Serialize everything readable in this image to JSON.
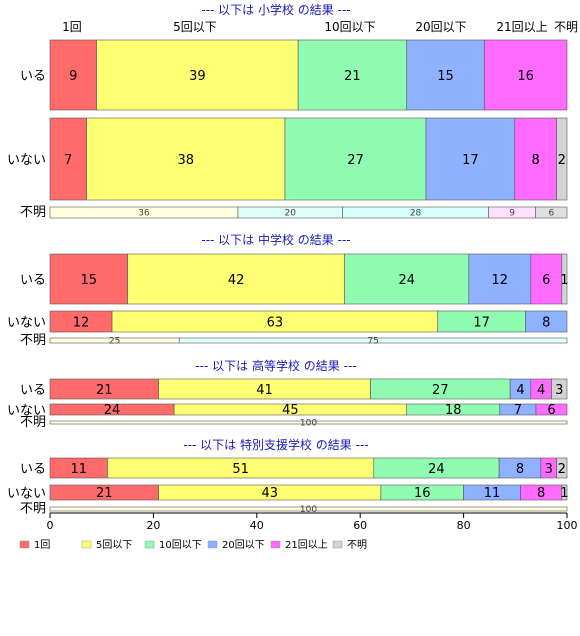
{
  "colors": {
    "cat1": "#ff6b6b",
    "cat2": "#ffff73",
    "cat3": "#8ffcb2",
    "cat4": "#8eb2ff",
    "cat5": "#ff6bff",
    "cat6": "#d3d3d3",
    "bar_border": "#555555",
    "title": "#1a1ab8"
  },
  "chart_data": {
    "type": "bar",
    "orientation": "horizontal-stacked-100",
    "categories": [
      "1回",
      "5回以下",
      "10回以下",
      "20回以下",
      "21回以上",
      "不明"
    ],
    "top_category_labels": [
      "1回",
      "5回以下",
      "10回以下",
      "20回以下",
      "21回以上",
      "不明"
    ],
    "xlim": [
      0,
      100
    ],
    "xticks": [
      0,
      20,
      40,
      60,
      80,
      100
    ],
    "legend": {
      "position": "bottom-left",
      "labels": [
        "1回",
        "5回以下",
        "10回以下",
        "20回以下",
        "21回以上",
        "不明"
      ]
    },
    "groups": [
      {
        "title": "--- 以下は 小学校 の結果 ---",
        "rows": [
          {
            "label": "いる",
            "values": [
              9,
              39,
              21,
              15,
              16,
              0
            ]
          },
          {
            "label": "いない",
            "values": [
              7,
              38,
              27,
              17,
              8,
              2
            ]
          },
          {
            "label": "不明",
            "values": [
              0,
              36,
              20,
              28,
              9,
              6
            ]
          }
        ]
      },
      {
        "title": "--- 以下は 中学校 の結果 ---",
        "rows": [
          {
            "label": "いる",
            "values": [
              15,
              42,
              24,
              12,
              6,
              1
            ]
          },
          {
            "label": "いない",
            "values": [
              12,
              63,
              17,
              8,
              0,
              0
            ]
          },
          {
            "label": "不明",
            "values": [
              0,
              25,
              75,
              0,
              0,
              0
            ]
          }
        ]
      },
      {
        "title": "--- 以下は 高等学校 の結果 ---",
        "rows": [
          {
            "label": "いる",
            "values": [
              21,
              41,
              27,
              4,
              4,
              3
            ]
          },
          {
            "label": "いない",
            "values": [
              24,
              45,
              18,
              7,
              6,
              0
            ]
          },
          {
            "label": "不明",
            "values": [
              0,
              100,
              0,
              0,
              0,
              0
            ]
          }
        ]
      },
      {
        "title": "--- 以下は 特別支援学校 の結果 ---",
        "rows": [
          {
            "label": "いる",
            "values": [
              11,
              51,
              24,
              8,
              3,
              2
            ]
          },
          {
            "label": "いない",
            "values": [
              21,
              43,
              16,
              11,
              8,
              1
            ]
          },
          {
            "label": "不明",
            "values": [
              0,
              100,
              0,
              0,
              0,
              0
            ]
          }
        ]
      }
    ]
  }
}
